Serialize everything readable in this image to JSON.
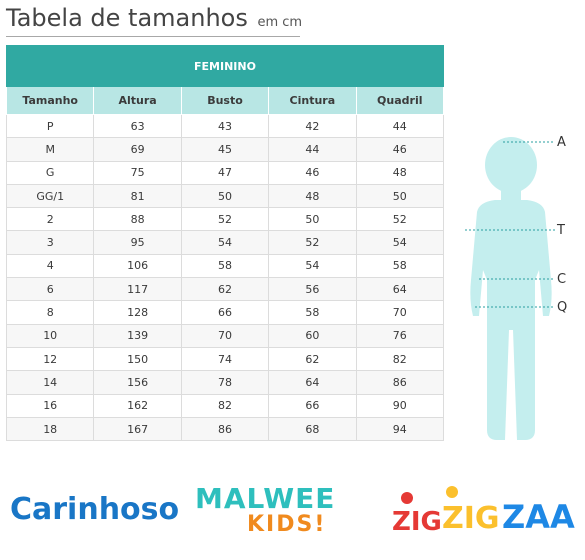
{
  "header": {
    "title": "Tabela de tamanhos",
    "unit": "em cm"
  },
  "table": {
    "group_label": "FEMININO",
    "columns": [
      "Tamanho",
      "Altura",
      "Busto",
      "Cintura",
      "Quadril"
    ],
    "rows": [
      [
        "P",
        "63",
        "43",
        "42",
        "44"
      ],
      [
        "M",
        "69",
        "45",
        "44",
        "46"
      ],
      [
        "G",
        "75",
        "47",
        "46",
        "48"
      ],
      [
        "GG/1",
        "81",
        "50",
        "48",
        "50"
      ],
      [
        "2",
        "88",
        "52",
        "50",
        "52"
      ],
      [
        "3",
        "95",
        "54",
        "52",
        "54"
      ],
      [
        "4",
        "106",
        "58",
        "54",
        "58"
      ],
      [
        "6",
        "117",
        "62",
        "56",
        "64"
      ],
      [
        "8",
        "128",
        "66",
        "58",
        "70"
      ],
      [
        "10",
        "139",
        "70",
        "60",
        "76"
      ],
      [
        "12",
        "150",
        "74",
        "62",
        "82"
      ],
      [
        "14",
        "156",
        "78",
        "64",
        "86"
      ],
      [
        "16",
        "162",
        "82",
        "66",
        "90"
      ],
      [
        "18",
        "167",
        "86",
        "68",
        "94"
      ]
    ]
  },
  "figure": {
    "labels": {
      "height": "A",
      "chest": "T",
      "waist": "C",
      "hip": "Q"
    }
  },
  "logos": {
    "carinhoso": "Carinhoso",
    "malwee_top": "MALWEE",
    "malwee_bottom": "KIDS!",
    "zig_1": "ZIG",
    "zig_2": "ZIG",
    "zig_3": "ZAA"
  },
  "colors": {
    "header_band": "#30a9a2",
    "column_header": "#b8e6e4",
    "figure_fill": "#c4eeee",
    "carinhoso_blue": "#1976c6",
    "malwee_teal": "#2ebfbd",
    "kids_orange": "#f08a1e"
  }
}
